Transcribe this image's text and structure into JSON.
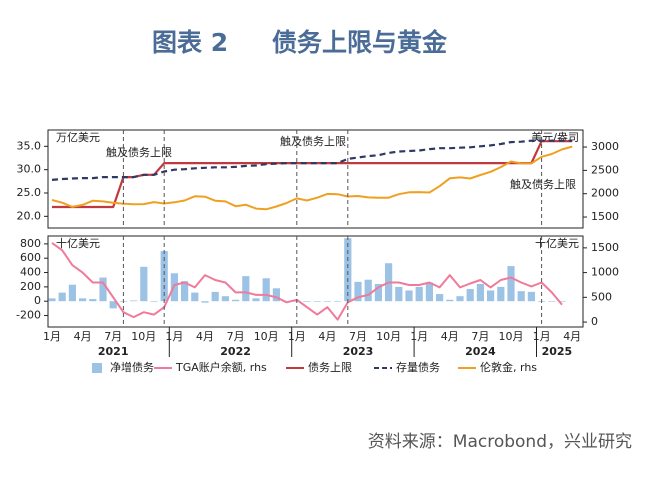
{
  "title": "图表 2",
  "subtitle": "债务上限与黄金",
  "source": "资料来源：Macrobond，兴业研究",
  "chart_data": [
    {
      "type": "line",
      "categories": [
        "1月",
        null,
        null,
        "4月",
        null,
        null,
        "7月",
        null,
        null,
        "10月",
        null,
        null,
        "1月",
        null,
        null,
        "4月",
        null,
        null,
        "7月",
        null,
        null,
        "10月",
        null,
        null,
        "1月",
        null,
        null,
        "4月",
        null,
        null,
        "7月",
        null,
        null,
        "10月",
        null,
        null,
        "1月",
        null,
        null,
        "4月",
        null,
        null,
        "7月",
        null,
        null,
        "10月",
        null,
        null,
        "1月",
        null,
        null,
        "4月"
      ],
      "y_unit": "万亿美元",
      "y2_unit": "美元/盎司",
      "ylim": [
        17.5,
        38.5
      ],
      "yticks": [
        {
          "value": 20,
          "label": "20.0"
        },
        {
          "value": 25,
          "label": "25.0"
        },
        {
          "value": 30,
          "label": "30.0"
        },
        {
          "value": 35,
          "label": "35.0"
        }
      ],
      "y2lim": [
        1265,
        3365
      ],
      "y2ticks": [
        1500,
        2000,
        2500,
        3000
      ],
      "vlines": [
        7,
        11,
        24,
        29,
        48
      ],
      "annotations": [
        "触及债务上限",
        "触及债务上限",
        "触及债务上限"
      ],
      "series": [
        {
          "name": "债务上限",
          "color": "#c0393f",
          "width": 2.2,
          "values": [
            22.0,
            22.0,
            22.0,
            22.0,
            22.0,
            22.0,
            22.0,
            28.4,
            28.4,
            28.9,
            28.9,
            31.4,
            31.4,
            31.4,
            31.4,
            31.4,
            31.4,
            31.4,
            31.4,
            31.4,
            31.4,
            31.4,
            31.4,
            31.4,
            31.4,
            31.4,
            31.4,
            31.4,
            31.4,
            31.4,
            31.4,
            31.4,
            31.4,
            31.4,
            31.4,
            31.4,
            31.4,
            31.4,
            31.4,
            31.4,
            31.4,
            31.4,
            31.4,
            31.4,
            31.4,
            31.4,
            31.4,
            31.4,
            36.1,
            36.1,
            36.1,
            36.1
          ]
        },
        {
          "name": "存量债务",
          "color": "#2d3a63",
          "width": 2.2,
          "dash": true,
          "values": [
            27.8,
            28.0,
            28.1,
            28.2,
            28.2,
            28.4,
            28.4,
            28.4,
            28.4,
            28.9,
            28.9,
            29.6,
            30.0,
            30.1,
            30.3,
            30.4,
            30.5,
            30.5,
            30.6,
            30.8,
            30.9,
            31.2,
            31.3,
            31.4,
            31.4,
            31.4,
            31.4,
            31.4,
            31.4,
            32.3,
            32.6,
            32.9,
            33.1,
            33.6,
            33.9,
            34.0,
            34.1,
            34.4,
            34.6,
            34.6,
            34.7,
            34.8,
            35.0,
            35.2,
            35.5,
            35.9,
            36.0,
            36.2,
            36.2,
            36.2,
            36.2,
            36.2
          ]
        },
        {
          "name": "伦敦金, rhs",
          "color": "#f0a020",
          "width": 2,
          "axis": "y2",
          "values": [
            1865,
            1808,
            1718,
            1760,
            1850,
            1835,
            1807,
            1785,
            1775,
            1777,
            1820,
            1790,
            1815,
            1855,
            1945,
            1935,
            1850,
            1835,
            1733,
            1765,
            1680,
            1665,
            1725,
            1800,
            1900,
            1855,
            1915,
            1995,
            1990,
            1940,
            1950,
            1920,
            1915,
            1915,
            1990,
            2030,
            2035,
            2025,
            2160,
            2330,
            2350,
            2325,
            2400,
            2470,
            2570,
            2690,
            2650,
            2650,
            2790,
            2850,
            2950,
            3010
          ]
        }
      ]
    },
    {
      "type": "bar",
      "y_unit": "十亿美元",
      "y2_unit": "十亿美元",
      "ylim": [
        -360,
        910
      ],
      "yticks": [
        -200,
        0,
        200,
        400,
        600,
        800
      ],
      "y2lim": [
        -100,
        1740
      ],
      "y2ticks": [
        0,
        500,
        1000,
        1500
      ],
      "year_labels": [
        "2021",
        "2022",
        "2023",
        "2024",
        "2025"
      ],
      "series": [
        {
          "name": "净增债务",
          "color": "#9cc3e6",
          "type": "bar",
          "values": [
            40,
            120,
            230,
            40,
            30,
            330,
            -100,
            0,
            10,
            480,
            0,
            700,
            390,
            280,
            120,
            -20,
            130,
            70,
            20,
            350,
            40,
            320,
            180,
            0,
            0,
            0,
            0,
            0,
            0,
            880,
            270,
            300,
            240,
            530,
            200,
            150,
            200,
            260,
            100,
            20,
            70,
            170,
            240,
            150,
            200,
            490,
            140,
            130,
            0,
            0,
            0,
            null
          ]
        },
        {
          "name": "TGA账户余额, rhs",
          "color": "#f07a9a",
          "type": "line",
          "axis": "y2",
          "width": 2,
          "values": [
            1600,
            1450,
            1150,
            1000,
            800,
            800,
            500,
            200,
            100,
            200,
            150,
            300,
            750,
            800,
            700,
            950,
            850,
            800,
            600,
            600,
            550,
            550,
            500,
            400,
            450,
            300,
            150,
            300,
            50,
            400,
            500,
            550,
            700,
            800,
            800,
            750,
            750,
            800,
            700,
            950,
            700,
            780,
            850,
            700,
            850,
            900,
            800,
            720,
            800,
            600,
            350,
            null
          ]
        }
      ]
    }
  ]
}
